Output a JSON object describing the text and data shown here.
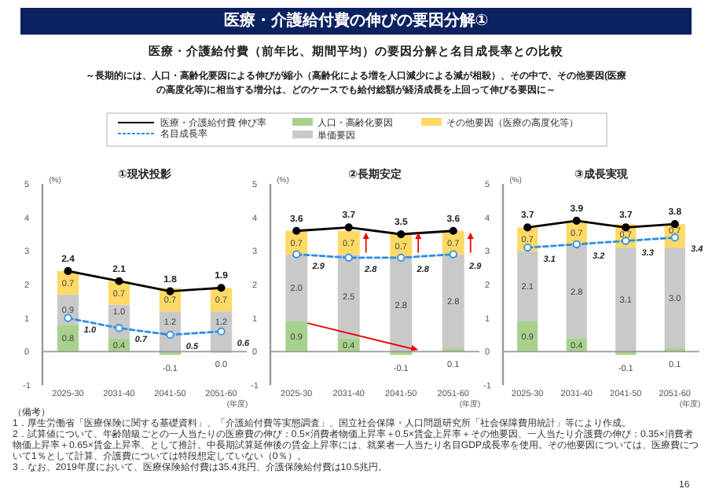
{
  "chart_data": [
    {
      "type": "bar",
      "stacked": true,
      "title": "①現状投影",
      "xlabel": "(年度)",
      "ylabel": "(%)",
      "categories": [
        "2025-30",
        "2031-40",
        "2041-50",
        "2051-60"
      ],
      "ylim": [
        -1,
        5
      ],
      "yticks": [
        -1,
        0,
        1,
        2,
        3,
        4,
        5
      ],
      "legend": "top",
      "annotations": [
        "医療・介護給付費の伸びの要因分解①",
        "医療・介護給付費（前年比、期間平均）の要因分解と名目成長率との比較",
        "～長期的には、人口・高齢化要因による伸びが縮小（高齢化による増を人口減少による減が相殺）、その中で、その他要因(医療の高度化等)に相当する増分は、どのケースでも給付総額が経済成長を上回って伸びる要因に～",
        "（備考）",
        "1．厚生労働省「医療保険に関する基礎資料」、「介護給付費等実態調査」、国立社会保障・人口問題研究所「社会保障費用統計」等により作成。",
        "2．試算値について、年齢階級ごとの一人当たりの医療費の伸び：0.5×消費者物価上昇率＋0.5×賃金上昇率＋その他要因、一人当たり介護費の伸び：0.35×消費者物価上昇率＋0.65×賃金上昇率、として推計。中長期試算延伸後の賃金上昇率には、就業者一人当たり名目GDP成長率を使用。その他要因については、医療費について1％として計算、介護費については特段想定していない（0％）。",
        "3．なお、2019年度において、医療保険給付費は35.4兆円、介護保険給付費は10.5兆円。",
        "16"
      ],
      "series": [
        {
          "name": "人口・高齢化要因",
          "color": "#a9d18e",
          "values": [
            0.8,
            0.4,
            -0.1,
            0.0
          ],
          "value_labels": [
            "0.8",
            "0.4",
            "-0.1",
            "0.0"
          ]
        },
        {
          "name": "単価要因",
          "color": "#c9c9c9",
          "values": [
            0.9,
            1.0,
            1.2,
            1.2
          ],
          "value_labels": [
            "0.9",
            "1.0",
            "1.2",
            "1.2"
          ]
        },
        {
          "name": "その他要因（医療の高度化等）",
          "color": "#ffd966",
          "values": [
            0.7,
            0.7,
            0.7,
            0.7
          ],
          "value_labels": [
            "0.7",
            "0.7",
            "0.7",
            "0.7"
          ]
        },
        {
          "name": "医療・介護給付費 伸び率",
          "type": "line",
          "color": "#000000",
          "marker": "circle",
          "line_style": "solid",
          "values": [
            2.4,
            2.1,
            1.8,
            1.9
          ],
          "value_labels": [
            "2.4",
            "2.1",
            "1.8",
            "1.9"
          ]
        },
        {
          "name": "名目成長率",
          "type": "line",
          "color": "#2e8ee6",
          "marker": "circle",
          "line_style": "dashed",
          "values": [
            1.0,
            0.7,
            0.5,
            0.6
          ],
          "value_labels": [
            "1.0",
            "0.7",
            "0.5",
            "0.6"
          ]
        }
      ]
    },
    {
      "type": "bar",
      "stacked": true,
      "title": "②長期安定",
      "xlabel": "(年度)",
      "ylabel": "(%)",
      "categories": [
        "2025-30",
        "2031-40",
        "2041-50",
        "2051-60"
      ],
      "ylim": [
        -1,
        5
      ],
      "yticks": [
        -1,
        0,
        1,
        2,
        3,
        4,
        5
      ],
      "series": [
        {
          "color": "#a9d18e",
          "values": [
            0.9,
            0.4,
            -0.1,
            0.1
          ],
          "value_labels": [
            "0.9",
            "0.4",
            "-0.1",
            "0.1"
          ]
        },
        {
          "color": "#c9c9c9",
          "values": [
            2.0,
            2.5,
            2.8,
            2.8
          ],
          "value_labels": [
            "2.0",
            "2.5",
            "2.8",
            "2.8"
          ]
        },
        {
          "color": "#ffd966",
          "values": [
            0.7,
            0.7,
            0.7,
            0.7
          ],
          "value_labels": [
            "0.7",
            "0.7",
            "0.7",
            "0.7"
          ]
        },
        {
          "type": "line",
          "color": "#000000",
          "marker": "circle",
          "line_style": "solid",
          "values": [
            3.6,
            3.7,
            3.5,
            3.6
          ],
          "value_labels": [
            "3.6",
            "3.7",
            "3.5",
            "3.6"
          ]
        },
        {
          "type": "line",
          "color": "#2e8ee6",
          "marker": "circle",
          "line_style": "dashed",
          "values": [
            2.9,
            2.8,
            2.8,
            2.9
          ],
          "value_labels": [
            "2.9",
            "2.8",
            "2.8",
            "2.9"
          ]
        }
      ]
    },
    {
      "type": "bar",
      "stacked": true,
      "title": "③成長実現",
      "xlabel": "(年度)",
      "ylabel": "(%)",
      "categories": [
        "2025-30",
        "2031-40",
        "2041-50",
        "2051-60"
      ],
      "ylim": [
        -1,
        5
      ],
      "yticks": [
        -1,
        0,
        1,
        2,
        3,
        4,
        5
      ],
      "series": [
        {
          "color": "#a9d18e",
          "values": [
            0.9,
            0.4,
            -0.1,
            0.1
          ],
          "value_labels": [
            "0.9",
            "0.4",
            "-0.1",
            "0.1"
          ]
        },
        {
          "color": "#c9c9c9",
          "values": [
            2.1,
            2.8,
            3.1,
            3.0
          ],
          "value_labels": [
            "2.1",
            "2.8",
            "3.1",
            "3.0"
          ]
        },
        {
          "color": "#ffd966",
          "values": [
            0.7,
            0.7,
            0.7,
            0.7
          ],
          "value_labels": [
            "0.7",
            "0.7",
            "0.7",
            "0.7"
          ]
        },
        {
          "type": "line",
          "color": "#000000",
          "marker": "circle",
          "line_style": "solid",
          "values": [
            3.7,
            3.9,
            3.7,
            3.8
          ],
          "value_labels": [
            "3.7",
            "3.9",
            "3.7",
            "3.8"
          ]
        },
        {
          "type": "line",
          "color": "#2e8ee6",
          "marker": "circle",
          "line_style": "dashed",
          "values": [
            3.1,
            3.2,
            3.3,
            3.4
          ],
          "value_labels": [
            "3.1",
            "3.2",
            "3.3",
            "3.4"
          ]
        }
      ]
    }
  ]
}
